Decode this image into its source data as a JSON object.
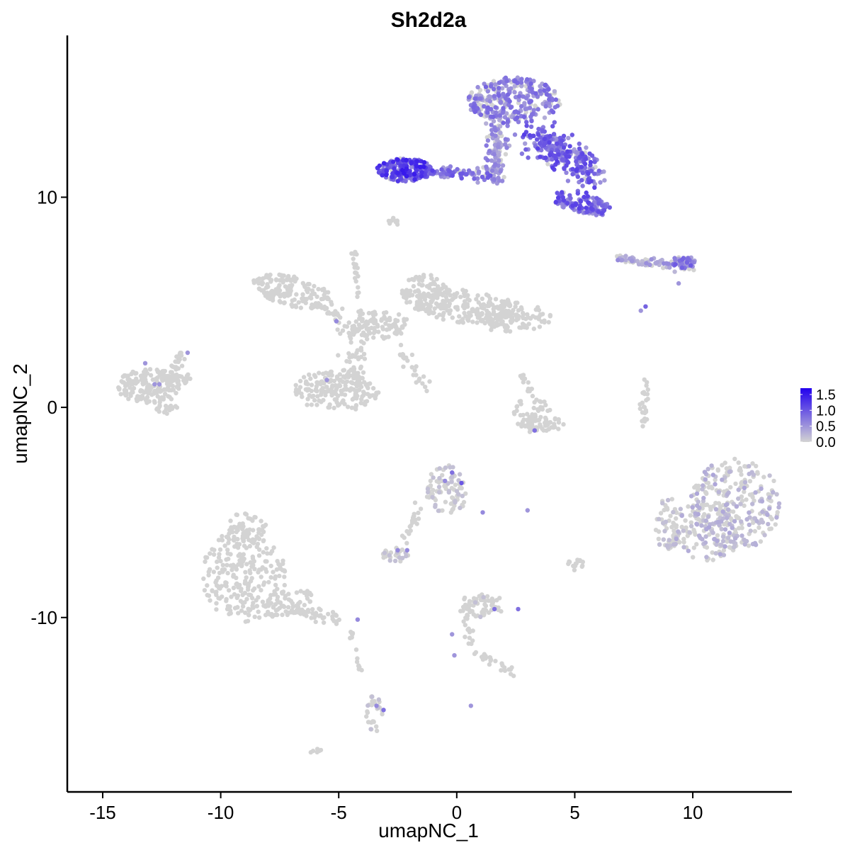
{
  "chart_data": {
    "type": "scatter",
    "title": "Sh2d2a",
    "xlabel": "umapNC_1",
    "ylabel": "umapNC_2",
    "xlim": [
      -16.5,
      14.2
    ],
    "ylim": [
      -18.3,
      17.7
    ],
    "x_ticks": [
      -15,
      -10,
      -5,
      0,
      5,
      10
    ],
    "x_tick_labels": [
      "-15",
      "-10",
      "-5",
      "0",
      "5",
      "10"
    ],
    "y_ticks": [
      -10,
      0,
      10
    ],
    "y_tick_labels": [
      "-10",
      "0",
      "10"
    ],
    "grid": false,
    "legend": {
      "placement": "right",
      "labels": [
        "1.5",
        "1.0",
        "0.5",
        "0.0"
      ],
      "values": [
        1.5,
        1.0,
        0.5,
        0.0
      ],
      "range": [
        0,
        1.7
      ],
      "low_color": "#d3d3d3",
      "high_color": "#2200ee"
    },
    "clusters": [
      {
        "shape": "ellipse",
        "cx": -13.0,
        "cy": 1.0,
        "rx": 1.4,
        "ry": 0.85,
        "rot": 0,
        "n": 160,
        "expr": 0.0
      },
      {
        "shape": "ellipse",
        "cx": -11.9,
        "cy": 1.5,
        "rx": 0.7,
        "ry": 0.5,
        "rot": 0,
        "n": 50,
        "expr": 0.0
      },
      {
        "shape": "ellipse",
        "cx": -11.7,
        "cy": 2.3,
        "rx": 0.25,
        "ry": 0.35,
        "rot": 0,
        "n": 12,
        "expr": 0.0
      },
      {
        "shape": "ellipse",
        "cx": -12.3,
        "cy": 0.0,
        "rx": 0.5,
        "ry": 0.3,
        "rot": 0,
        "n": 20,
        "expr": 0.0
      },
      {
        "shape": "ellipse",
        "cx": -6.9,
        "cy": 5.5,
        "rx": 1.8,
        "ry": 0.7,
        "rot": -15,
        "n": 150,
        "expr": 0.0
      },
      {
        "shape": "ellipse",
        "cx": -5.1,
        "cy": 0.8,
        "rx": 1.8,
        "ry": 1.0,
        "rot": 0,
        "n": 180,
        "expr": 0.0
      },
      {
        "shape": "segment",
        "x1": -5.8,
        "y1": 5.0,
        "x2": -3.8,
        "y2": 3.3,
        "w": 0.35,
        "n": 40,
        "expr": 0.0
      },
      {
        "shape": "segment",
        "x1": -4.2,
        "y1": 3.6,
        "x2": -4.3,
        "y2": 1.0,
        "w": 0.5,
        "n": 50,
        "expr": 0.0
      },
      {
        "shape": "segment",
        "x1": -4.4,
        "y1": 7.5,
        "x2": -4.0,
        "y2": 4.2,
        "w": 0.15,
        "n": 25,
        "expr": 0.0
      },
      {
        "shape": "ellipse",
        "cx": -3.2,
        "cy": 3.9,
        "rx": 1.2,
        "ry": 0.7,
        "rot": 0,
        "n": 90,
        "expr": 0.0
      },
      {
        "shape": "ellipse",
        "cx": -1.3,
        "cy": 5.4,
        "rx": 1.1,
        "ry": 0.9,
        "rot": -30,
        "n": 110,
        "expr": 0.0
      },
      {
        "shape": "ellipse",
        "cx": 0.4,
        "cy": 4.8,
        "rx": 2.2,
        "ry": 0.8,
        "rot": -5,
        "n": 160,
        "expr": 0.0
      },
      {
        "shape": "ellipse",
        "cx": 2.3,
        "cy": 4.3,
        "rx": 1.8,
        "ry": 0.7,
        "rot": 0,
        "n": 120,
        "expr": 0.0
      },
      {
        "shape": "segment",
        "x1": -2.6,
        "y1": 3.0,
        "x2": -1.2,
        "y2": 0.7,
        "w": 0.2,
        "n": 25,
        "expr": 0.0
      },
      {
        "shape": "ellipse",
        "cx": 3.2,
        "cy": -0.3,
        "rx": 0.8,
        "ry": 0.9,
        "rot": 0,
        "n": 60,
        "expr": 0.0
      },
      {
        "shape": "ellipse",
        "cx": 3.6,
        "cy": -0.8,
        "rx": 1.0,
        "ry": 0.35,
        "rot": 0,
        "n": 40,
        "expr": 0.0
      },
      {
        "shape": "segment",
        "x1": 2.7,
        "y1": 1.6,
        "x2": 3.3,
        "y2": 0.4,
        "w": 0.2,
        "n": 15,
        "expr": 0.0
      },
      {
        "shape": "segment",
        "x1": 8.0,
        "y1": 1.3,
        "x2": 7.9,
        "y2": -0.8,
        "w": 0.15,
        "n": 25,
        "expr": 0.0
      },
      {
        "shape": "ellipse",
        "cx": 11.8,
        "cy": -4.6,
        "rx": 1.9,
        "ry": 2.2,
        "rot": 0,
        "n": 260,
        "expr": 0.25
      },
      {
        "shape": "ellipse",
        "cx": 10.6,
        "cy": -5.9,
        "rx": 1.5,
        "ry": 1.4,
        "rot": 0,
        "n": 120,
        "expr": 0.25
      },
      {
        "shape": "ellipse",
        "cx": 9.0,
        "cy": -5.6,
        "rx": 0.6,
        "ry": 1.3,
        "rot": 0,
        "n": 60,
        "expr": 0.15
      },
      {
        "shape": "ellipse",
        "cx": -9.0,
        "cy": -8.0,
        "rx": 1.8,
        "ry": 2.2,
        "rot": 0,
        "n": 250,
        "expr": 0.0
      },
      {
        "shape": "ellipse",
        "cx": -8.9,
        "cy": -5.7,
        "rx": 0.9,
        "ry": 0.7,
        "rot": 0,
        "n": 60,
        "expr": 0.0
      },
      {
        "shape": "ellipse",
        "cx": -7.2,
        "cy": -9.3,
        "rx": 1.1,
        "ry": 0.6,
        "rot": 20,
        "n": 60,
        "expr": 0.0
      },
      {
        "shape": "segment",
        "x1": -6.8,
        "y1": -9.6,
        "x2": -4.7,
        "y2": -10.3,
        "w": 0.3,
        "n": 40,
        "expr": 0.0
      },
      {
        "shape": "segment",
        "x1": -4.5,
        "y1": -10.6,
        "x2": -4.1,
        "y2": -12.5,
        "w": 0.12,
        "n": 15,
        "expr": 0.0
      },
      {
        "shape": "ellipse",
        "cx": -3.5,
        "cy": -14.6,
        "rx": 0.35,
        "ry": 0.9,
        "rot": 0,
        "n": 30,
        "expr": 0.05
      },
      {
        "shape": "ellipse",
        "cx": -6.0,
        "cy": -16.3,
        "rx": 0.3,
        "ry": 0.15,
        "rot": 0,
        "n": 6,
        "expr": 0.0
      },
      {
        "shape": "ellipse",
        "cx": -0.4,
        "cy": -3.9,
        "rx": 0.9,
        "ry": 1.2,
        "rot": 0,
        "n": 90,
        "expr": 0.1
      },
      {
        "shape": "segment",
        "x1": -1.6,
        "y1": -4.8,
        "x2": -2.4,
        "y2": -6.9,
        "w": 0.25,
        "n": 25,
        "expr": 0.0
      },
      {
        "shape": "ellipse",
        "cx": -2.6,
        "cy": -7.0,
        "rx": 0.55,
        "ry": 0.35,
        "rot": 0,
        "n": 25,
        "expr": 0.1
      },
      {
        "shape": "ellipse",
        "cx": 1.2,
        "cy": -9.4,
        "rx": 0.8,
        "ry": 0.6,
        "rot": 0,
        "n": 50,
        "expr": 0.05
      },
      {
        "shape": "segment",
        "x1": 0.3,
        "y1": -8.8,
        "x2": 0.6,
        "y2": -11.5,
        "w": 0.2,
        "n": 30,
        "expr": 0.0
      },
      {
        "shape": "segment",
        "x1": 0.8,
        "y1": -11.7,
        "x2": 2.4,
        "y2": -12.6,
        "w": 0.2,
        "n": 25,
        "expr": 0.0
      },
      {
        "shape": "ellipse",
        "cx": 5.0,
        "cy": -7.5,
        "rx": 0.4,
        "ry": 0.3,
        "rot": 0,
        "n": 15,
        "expr": 0.0
      },
      {
        "shape": "ellipse",
        "cx": -2.2,
        "cy": 11.3,
        "rx": 1.2,
        "ry": 0.55,
        "rot": 0,
        "n": 200,
        "expr": 1.0
      },
      {
        "shape": "segment",
        "x1": -1.0,
        "y1": 11.2,
        "x2": 1.6,
        "y2": 11.1,
        "w": 0.25,
        "n": 60,
        "expr": 0.7
      },
      {
        "shape": "ellipse",
        "cx": 2.4,
        "cy": 14.6,
        "rx": 2.0,
        "ry": 1.1,
        "rot": 0,
        "n": 300,
        "expr": 0.6
      },
      {
        "shape": "segment",
        "x1": 1.8,
        "y1": 13.5,
        "x2": 1.5,
        "y2": 10.8,
        "w": 0.45,
        "n": 120,
        "expr": 0.5
      },
      {
        "shape": "segment",
        "x1": 3.3,
        "y1": 13.0,
        "x2": 5.8,
        "y2": 11.0,
        "w": 0.8,
        "n": 260,
        "expr": 0.8
      },
      {
        "shape": "ellipse",
        "cx": 5.3,
        "cy": 9.7,
        "rx": 1.3,
        "ry": 0.45,
        "rot": -15,
        "n": 120,
        "expr": 0.8
      },
      {
        "shape": "segment",
        "x1": 6.8,
        "y1": 7.1,
        "x2": 10.0,
        "y2": 6.7,
        "w": 0.2,
        "n": 80,
        "expr": 0.4
      },
      {
        "shape": "ellipse",
        "cx": 9.6,
        "cy": 6.9,
        "rx": 0.5,
        "ry": 0.3,
        "rot": 0,
        "n": 40,
        "expr": 0.7
      },
      {
        "shape": "ellipse",
        "cx": -2.7,
        "cy": 8.8,
        "rx": 0.25,
        "ry": 0.25,
        "rot": 0,
        "n": 10,
        "expr": 0.0
      }
    ],
    "highlighted_points": [
      {
        "x": -13.2,
        "y": 2.1,
        "v": 0.5
      },
      {
        "x": -12.6,
        "y": 1.1,
        "v": 0.5
      },
      {
        "x": -12.8,
        "y": 1.1,
        "v": 0.5
      },
      {
        "x": -11.4,
        "y": 2.6,
        "v": 0.5
      },
      {
        "x": -5.1,
        "y": 4.1,
        "v": 0.6
      },
      {
        "x": -5.5,
        "y": 1.3,
        "v": 0.5
      },
      {
        "x": 3.3,
        "y": -1.1,
        "v": 0.8
      },
      {
        "x": 8.0,
        "y": 4.8,
        "v": 0.9
      },
      {
        "x": -0.2,
        "y": -3.1,
        "v": 0.8
      },
      {
        "x": 0.2,
        "y": -3.6,
        "v": 1.0
      },
      {
        "x": -0.5,
        "y": -3.5,
        "v": 0.6
      },
      {
        "x": 1.1,
        "y": -5.0,
        "v": 0.6
      },
      {
        "x": 3.0,
        "y": -4.9,
        "v": 0.5
      },
      {
        "x": -2.5,
        "y": -6.8,
        "v": 0.6
      },
      {
        "x": -2.1,
        "y": -6.8,
        "v": 0.6
      },
      {
        "x": 1.6,
        "y": -9.6,
        "v": 0.8
      },
      {
        "x": 2.6,
        "y": -9.6,
        "v": 0.8
      },
      {
        "x": -4.2,
        "y": -10.1,
        "v": 0.6
      },
      {
        "x": -0.2,
        "y": -10.8,
        "v": 0.5
      },
      {
        "x": -0.1,
        "y": -11.8,
        "v": 0.5
      },
      {
        "x": 0.6,
        "y": -14.2,
        "v": 0.5
      },
      {
        "x": -3.1,
        "y": -14.4,
        "v": 0.8
      },
      {
        "x": -3.4,
        "y": -14.2,
        "v": 0.6
      },
      {
        "x": 7.8,
        "y": 4.6,
        "v": 0.5
      },
      {
        "x": 9.4,
        "y": 5.9,
        "v": 0.5
      }
    ]
  }
}
